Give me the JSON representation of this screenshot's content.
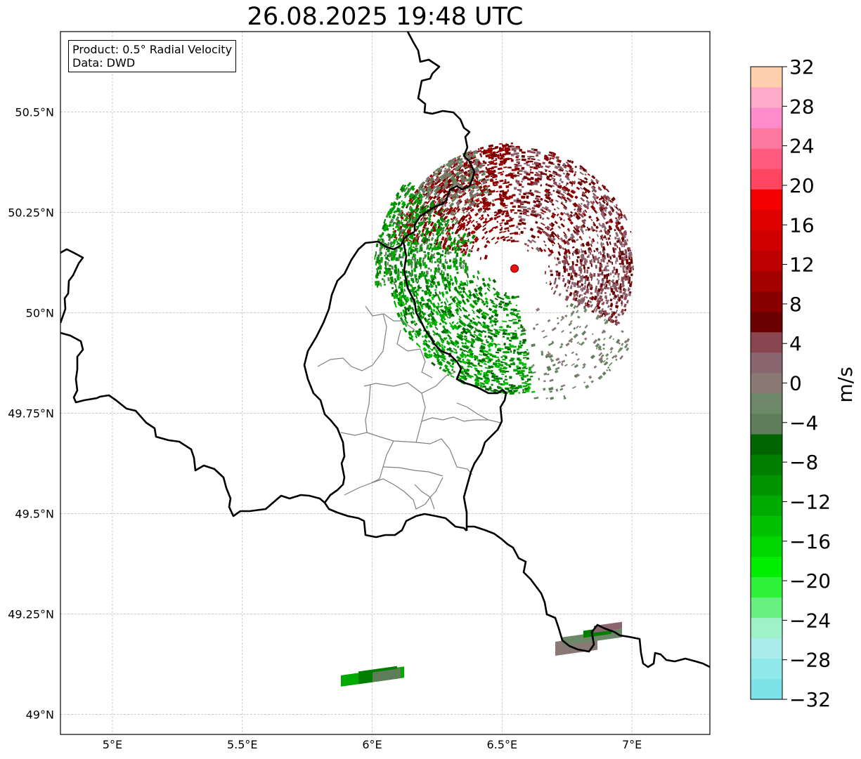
{
  "title": "26.08.2025 19:48 UTC",
  "info": {
    "product": "Product: 0.5° Radial Velocity",
    "data": "Data: DWD"
  },
  "map": {
    "lon_range": [
      4.8,
      7.3
    ],
    "lat_range": [
      48.95,
      50.7
    ],
    "lon_ticks": [
      {
        "value": 5.0,
        "label": "5°E"
      },
      {
        "value": 5.5,
        "label": "5.5°E"
      },
      {
        "value": 6.0,
        "label": "6°E"
      },
      {
        "value": 6.5,
        "label": "6.5°E"
      },
      {
        "value": 7.0,
        "label": "7°E"
      }
    ],
    "lat_ticks": [
      {
        "value": 50.5,
        "label": "50.5°N"
      },
      {
        "value": 50.25,
        "label": "50.25°N"
      },
      {
        "value": 50.0,
        "label": "50°N"
      },
      {
        "value": 49.75,
        "label": "49.75°N"
      },
      {
        "value": 49.5,
        "label": "49.5°N"
      },
      {
        "value": 49.25,
        "label": "49.25°N"
      },
      {
        "value": 49.0,
        "label": "49°N"
      }
    ],
    "radar_site": {
      "lon": 6.548,
      "lat": 50.11
    },
    "grid": true
  },
  "colorbar": {
    "label": "m/s",
    "min": -32,
    "max": 32,
    "tick_labels": [
      "32",
      "28",
      "24",
      "20",
      "16",
      "12",
      "8",
      "4",
      "0",
      "−4",
      "−8",
      "−12",
      "−16",
      "−20",
      "−24",
      "−28",
      "−32"
    ],
    "colors": [
      "#7ee3e8",
      "#90e8ea",
      "#a8ecec",
      "#9ff2c8",
      "#66f07e",
      "#2ef23a",
      "#00ee00",
      "#00d600",
      "#00c200",
      "#00aa00",
      "#009400",
      "#007e00",
      "#006400",
      "#5d7e58",
      "#6c8868",
      "#8a7875",
      "#8a6670",
      "#8a4650",
      "#6b0000",
      "#8a0000",
      "#a40000",
      "#bc0000",
      "#d00000",
      "#e00000",
      "#f40000",
      "#ff4560",
      "#ff5c80",
      "#ff7aa2",
      "#ff8acc",
      "#ffaac8",
      "#ffcfae"
    ]
  },
  "colors": {
    "border_country": "#000000",
    "border_region": "#808080",
    "radar_marker": "#ee1111"
  }
}
